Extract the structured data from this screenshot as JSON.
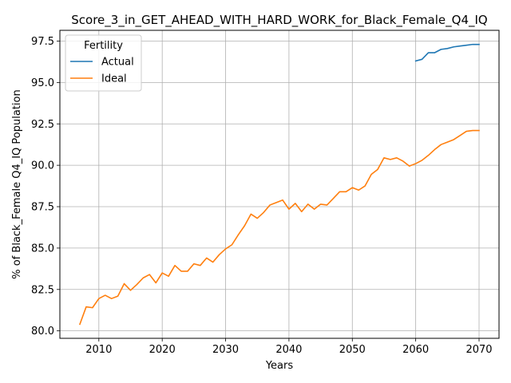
{
  "chart_data": {
    "type": "line",
    "title": "Score_3_in_GET_AHEAD_WITH_HARD_WORK_for_Black_Female_Q4_IQ",
    "xlabel": "Years",
    "ylabel": "% of Black_Female Q4_IQ Population",
    "xlim": [
      2003.85,
      2073.15
    ],
    "ylim": [
      79.55,
      98.15
    ],
    "xticks": [
      2010,
      2020,
      2030,
      2040,
      2050,
      2060,
      2070
    ],
    "yticks": [
      80.0,
      82.5,
      85.0,
      87.5,
      90.0,
      92.5,
      95.0,
      97.5
    ],
    "xtick_labels": [
      "2010",
      "2020",
      "2030",
      "2040",
      "2050",
      "2060",
      "2070"
    ],
    "ytick_labels": [
      "80.0",
      "82.5",
      "85.0",
      "87.5",
      "90.0",
      "92.5",
      "95.0",
      "97.5"
    ],
    "grid": true,
    "legend": {
      "title": "Fertility",
      "placement": "top-left"
    },
    "series": [
      {
        "name": "Actual",
        "color": "#1f77b4",
        "x": [
          2060,
          2061,
          2062,
          2063,
          2064,
          2065,
          2066,
          2067,
          2068,
          2069,
          2070
        ],
        "y": [
          96.3,
          96.4,
          96.8,
          96.8,
          97.0,
          97.05,
          97.15,
          97.2,
          97.25,
          97.3,
          97.3
        ]
      },
      {
        "name": "Ideal",
        "color": "#ff7f0e",
        "x": [
          2007,
          2008,
          2009,
          2010,
          2011,
          2012,
          2013,
          2014,
          2015,
          2016,
          2017,
          2018,
          2019,
          2020,
          2021,
          2022,
          2023,
          2024,
          2025,
          2026,
          2027,
          2028,
          2029,
          2030,
          2031,
          2032,
          2033,
          2034,
          2035,
          2036,
          2037,
          2038,
          2039,
          2040,
          2041,
          2042,
          2043,
          2044,
          2045,
          2046,
          2047,
          2048,
          2049,
          2050,
          2051,
          2052,
          2053,
          2054,
          2055,
          2056,
          2057,
          2058,
          2059,
          2060,
          2061,
          2062,
          2063,
          2064,
          2065,
          2066,
          2067,
          2068,
          2069,
          2070
        ],
        "y": [
          80.4,
          81.45,
          81.4,
          81.95,
          82.15,
          81.95,
          82.1,
          82.85,
          82.45,
          82.8,
          83.2,
          83.4,
          82.9,
          83.5,
          83.3,
          83.95,
          83.6,
          83.6,
          84.05,
          83.95,
          84.4,
          84.15,
          84.6,
          84.95,
          85.2,
          85.8,
          86.35,
          87.05,
          86.8,
          87.15,
          87.6,
          87.75,
          87.9,
          87.35,
          87.7,
          87.2,
          87.65,
          87.35,
          87.65,
          87.6,
          88.0,
          88.4,
          88.4,
          88.65,
          88.5,
          88.75,
          89.45,
          89.75,
          90.45,
          90.35,
          90.45,
          90.25,
          89.95,
          90.1,
          90.3,
          90.6,
          90.95,
          91.25,
          91.4,
          91.55,
          91.8,
          92.05,
          92.1,
          92.1
        ]
      }
    ]
  }
}
